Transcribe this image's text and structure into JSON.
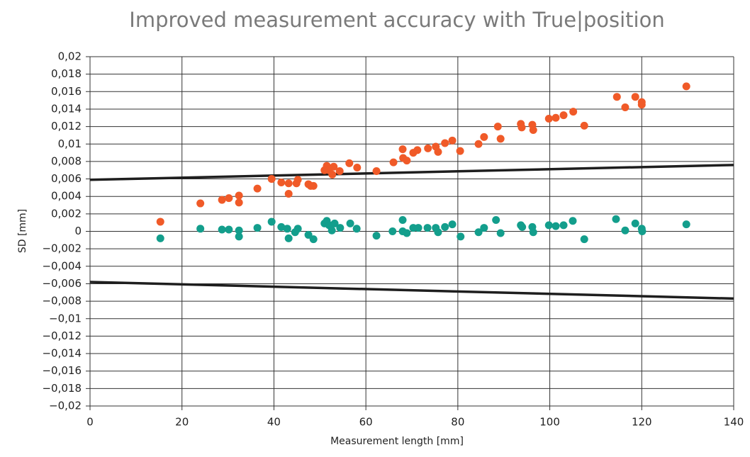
{
  "chart_data": {
    "type": "scatter",
    "title": "Improved measurement accuracy with True|position",
    "xlabel": "Measurement length [mm]",
    "ylabel": "SD [mm]",
    "xlim": [
      0,
      140
    ],
    "xticks": [
      0,
      20,
      40,
      60,
      80,
      100,
      120,
      140
    ],
    "ylim": [
      -0.02,
      0.02
    ],
    "yticks": [
      {
        "value": 0.02,
        "label": "0,02"
      },
      {
        "value": 0.018,
        "label": "0,018"
      },
      {
        "value": 0.016,
        "label": "0,016"
      },
      {
        "value": 0.014,
        "label": "0,014"
      },
      {
        "value": 0.012,
        "label": "0,012"
      },
      {
        "value": 0.01,
        "label": "0,01"
      },
      {
        "value": 0.008,
        "label": "0,008"
      },
      {
        "value": 0.006,
        "label": "0,006"
      },
      {
        "value": 0.004,
        "label": "0,004"
      },
      {
        "value": 0.002,
        "label": "0,002"
      },
      0,
      {
        "value": -0.002,
        "label": "−0,002"
      },
      {
        "value": -0.004,
        "label": "−0,004"
      },
      {
        "value": -0.006,
        "label": "−0,006"
      },
      {
        "value": -0.008,
        "label": "−0,008"
      },
      {
        "value": -0.01,
        "label": "−0,01"
      },
      {
        "value": -0.012,
        "label": "−0,012"
      },
      {
        "value": -0.014,
        "label": "−0,014"
      },
      {
        "value": -0.016,
        "label": "−0,016"
      },
      {
        "value": -0.018,
        "label": "−0,018"
      },
      {
        "value": -0.02,
        "label": "−0,02"
      }
    ],
    "grid": true,
    "series": [
      {
        "color": "#f05a28",
        "x": [
          15.3,
          24.0,
          28.7,
          30.2,
          32.4,
          32.4,
          36.4,
          39.5,
          41.6,
          43.2,
          43.2,
          44.9,
          45.2,
          47.5,
          48.0,
          48.6,
          51.0,
          51.5,
          52.0,
          52.7,
          53.0,
          54.3,
          56.4,
          58.1,
          62.3,
          66.0,
          68.0,
          68.1,
          68.9,
          70.3,
          71.2,
          73.5,
          75.2,
          75.7,
          77.2,
          78.8,
          80.5,
          84.5,
          85.7,
          88.7,
          89.3,
          93.7,
          93.9,
          96.2,
          96.4,
          99.8,
          101.3,
          103.0,
          105.1,
          107.5,
          114.6,
          116.4,
          118.6,
          120.0,
          120.0,
          129.7
        ],
        "values": [
          0.0011,
          0.0032,
          0.0036,
          0.0038,
          0.0041,
          0.0033,
          0.0049,
          0.006,
          0.0056,
          0.0055,
          0.0043,
          0.0055,
          0.0059,
          0.0054,
          0.0052,
          0.0052,
          0.007,
          0.0075,
          0.007,
          0.0065,
          0.0074,
          0.0069,
          0.0078,
          0.0073,
          0.0069,
          0.0079,
          0.0094,
          0.0084,
          0.0081,
          0.009,
          0.0093,
          0.0095,
          0.0097,
          0.0091,
          0.0101,
          0.0104,
          0.0092,
          0.01,
          0.0108,
          0.012,
          0.0106,
          0.0123,
          0.0119,
          0.0122,
          0.0116,
          0.0129,
          0.013,
          0.0133,
          0.0137,
          0.0121,
          0.0154,
          0.0142,
          0.0154,
          0.0148,
          0.0145,
          0.0166
        ]
      },
      {
        "color": "#139e8c",
        "x": [
          15.3,
          24.0,
          28.7,
          30.2,
          32.4,
          32.4,
          36.4,
          39.5,
          41.6,
          42.9,
          43.2,
          44.6,
          45.2,
          47.5,
          48.6,
          51.0,
          51.5,
          52.0,
          52.6,
          53.2,
          54.4,
          56.6,
          58.0,
          62.3,
          65.8,
          68.0,
          68.0,
          68.9,
          70.3,
          71.4,
          73.4,
          75.2,
          75.7,
          77.2,
          78.8,
          80.6,
          84.5,
          85.7,
          88.3,
          89.3,
          93.7,
          94.0,
          96.2,
          96.4,
          99.8,
          101.3,
          103.0,
          105.0,
          107.5,
          114.4,
          116.4,
          118.6,
          120.0,
          120.1,
          129.7
        ],
        "values": [
          -0.0008,
          0.0003,
          0.0002,
          0.0002,
          0.0001,
          -0.0006,
          0.0004,
          0.0011,
          0.0005,
          0.0003,
          -0.0008,
          -0.0001,
          0.0003,
          -0.0004,
          -0.0009,
          0.0009,
          0.0012,
          0.0007,
          0.0001,
          0.0009,
          0.0004,
          0.0009,
          0.0003,
          -0.0005,
          0.0,
          0.0013,
          0.0,
          -0.0002,
          0.0004,
          0.0004,
          0.0004,
          0.0004,
          -0.0001,
          0.0005,
          0.0008,
          -0.0006,
          -0.0001,
          0.0004,
          0.0013,
          -0.0002,
          0.0007,
          0.0005,
          0.0005,
          -0.0001,
          0.0007,
          0.0006,
          0.0007,
          0.0012,
          -0.0009,
          0.0014,
          0.0001,
          0.0009,
          0.0003,
          0.0,
          0.0008
        ]
      }
    ],
    "lines": [
      {
        "color": "#1e1e1e",
        "x": [
          0,
          140
        ],
        "values": [
          0.0059,
          0.0076
        ]
      },
      {
        "color": "#1e1e1e",
        "x": [
          0,
          140
        ],
        "values": [
          -0.0058,
          -0.0077
        ]
      }
    ]
  }
}
